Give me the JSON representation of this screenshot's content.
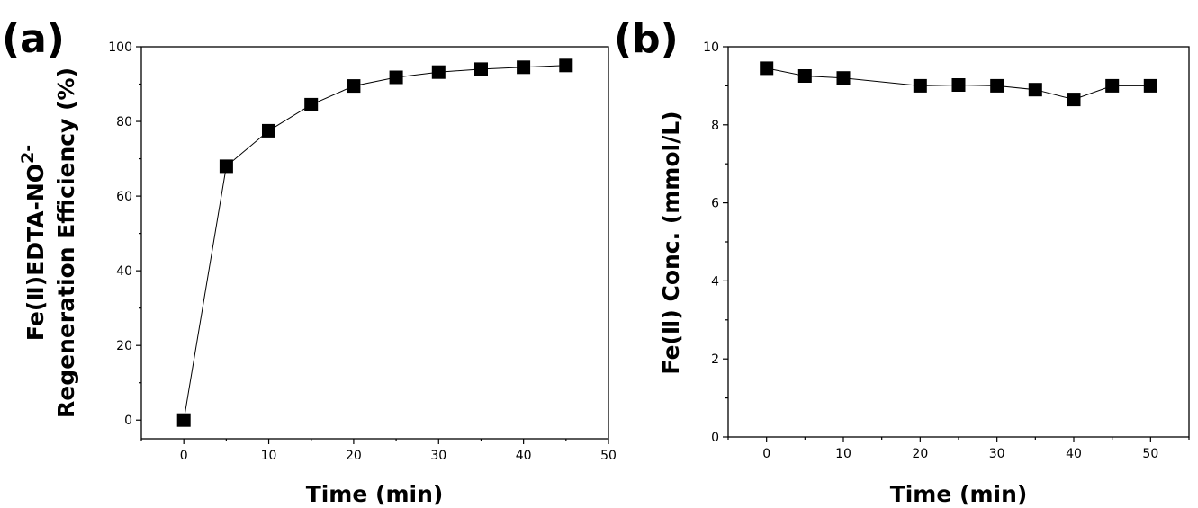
{
  "chart_data": [
    {
      "type": "line",
      "panel_label": "(a)",
      "xlabel": "Time (min)",
      "ylabel_lines": [
        "Fe(Ⅱ)EDTA-NO",
        "Regeneration Efficiency (%)"
      ],
      "ylabel_superscript": "2-",
      "xlim": [
        -5,
        50
      ],
      "ylim": [
        -5,
        100
      ],
      "xticks": [
        0,
        10,
        20,
        30,
        40,
        50
      ],
      "yticks": [
        0,
        20,
        40,
        60,
        80,
        100
      ],
      "grid": false,
      "marker": "square",
      "x": [
        0,
        5,
        10,
        15,
        20,
        25,
        30,
        35,
        40,
        45
      ],
      "y": [
        0,
        68,
        77.5,
        84.5,
        89.5,
        91.8,
        93.2,
        94,
        94.5,
        95
      ]
    },
    {
      "type": "line",
      "panel_label": "(b)",
      "xlabel": "Time (min)",
      "ylabel": "Fe(Ⅱ) Conc. (mmol/L)",
      "xlim": [
        -5,
        55
      ],
      "ylim": [
        0,
        10
      ],
      "xticks": [
        0,
        10,
        20,
        30,
        40,
        50
      ],
      "yticks": [
        0,
        2,
        4,
        6,
        8,
        10
      ],
      "grid": false,
      "marker": "square",
      "x": [
        0,
        5,
        10,
        20,
        25,
        30,
        35,
        40,
        45,
        50
      ],
      "y": [
        9.45,
        9.25,
        9.2,
        9.0,
        9.02,
        9.0,
        8.9,
        8.65,
        9.0,
        9.0
      ]
    }
  ]
}
